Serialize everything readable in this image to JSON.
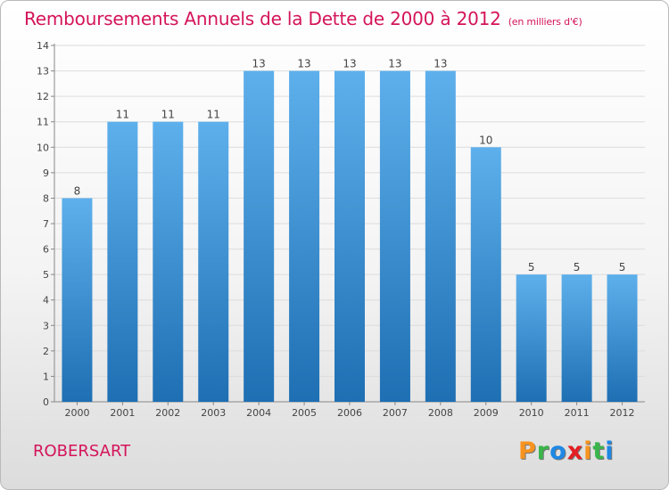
{
  "title": "Remboursements Annuels de la Dette de 2000 à 2012",
  "unit_note": "(en milliers d'€)",
  "commune": "ROBERSART",
  "logo": {
    "letters": [
      "P",
      "r",
      "o",
      "x",
      "i",
      "t",
      "i"
    ],
    "colors": [
      "#f7931e",
      "#39b54a",
      "#1e88e5",
      "#e31e24",
      "#f7931e",
      "#39b54a",
      "#1e88e5"
    ]
  },
  "colors": {
    "title": "#d4145a",
    "bar_light": "#5eb0ec",
    "bar_dark": "#1e6fb3"
  },
  "chart_data": {
    "type": "bar",
    "title": "Remboursements Annuels de la Dette de 2000 à 2012",
    "categories": [
      "2000",
      "2001",
      "2002",
      "2003",
      "2004",
      "2005",
      "2006",
      "2007",
      "2008",
      "2009",
      "2010",
      "2011",
      "2012"
    ],
    "values": [
      8,
      11,
      11,
      11,
      13,
      13,
      13,
      13,
      13,
      10,
      5,
      5,
      5
    ],
    "value_labels": [
      "8",
      "11",
      "11",
      "11",
      "13",
      "13",
      "13",
      "13",
      "13",
      "10",
      "5",
      "5",
      "5"
    ],
    "ylim": [
      0,
      14
    ],
    "yticks": [
      0,
      1,
      2,
      3,
      4,
      5,
      6,
      7,
      8,
      9,
      10,
      11,
      12,
      13,
      14
    ],
    "ytick_labels": [
      "0",
      "1",
      "2",
      "3",
      "4",
      "5",
      "6",
      "7",
      "8",
      "9",
      "10",
      "11",
      "12",
      "13",
      "14"
    ],
    "grid": "horizontal",
    "xlabel": "",
    "ylabel": ""
  }
}
